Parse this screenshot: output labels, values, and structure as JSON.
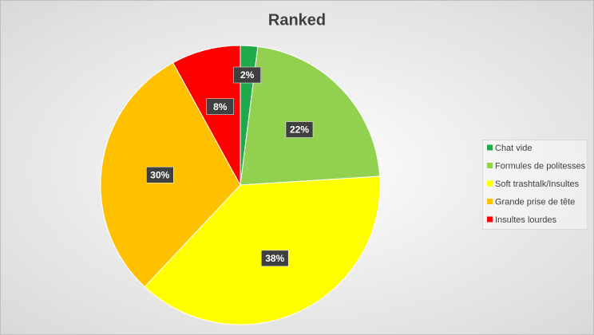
{
  "chart_data": {
    "type": "pie",
    "title": "Ranked",
    "categories": [
      "Chat vide",
      "Formules de politesses",
      "Soft trashtalk/Insultes",
      "Grande prise de tête",
      "Insultes lourdes"
    ],
    "values": [
      2,
      22,
      38,
      30,
      8
    ],
    "value_labels": [
      "2%",
      "22%",
      "38%",
      "30%",
      "8%"
    ],
    "colors": [
      "#1fa94b",
      "#92d050",
      "#ffff00",
      "#ffc000",
      "#ff0000"
    ],
    "legend": "right"
  }
}
